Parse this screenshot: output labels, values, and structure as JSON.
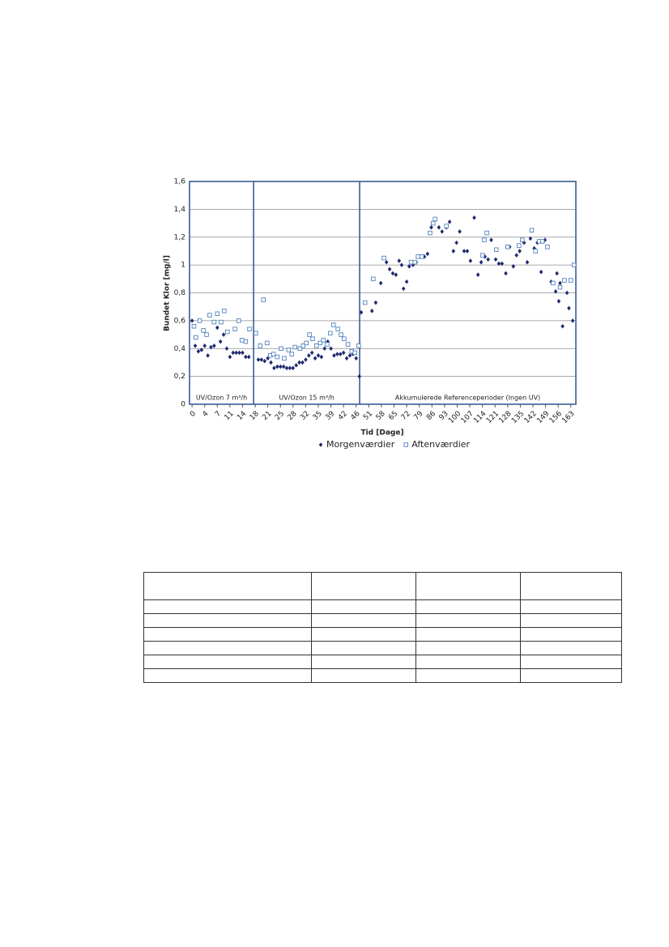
{
  "chart_data": {
    "type": "scatter",
    "ylabel": "Bundet Klor [mg/l]",
    "xlabel": "Tid [Dage]",
    "xlim": [
      -0.4,
      60.8
    ],
    "ylim": [
      0,
      1.6
    ],
    "yticks": [
      0,
      {
        "value": 0.2,
        "label": "0,2"
      },
      {
        "value": 0.4,
        "label": "0,4"
      },
      {
        "value": 0.6,
        "label": "0,6"
      },
      {
        "value": 0.8,
        "label": "0,8"
      },
      1,
      {
        "value": 1.2,
        "label": "1,2"
      },
      {
        "value": 1.4,
        "label": "1,4"
      },
      {
        "value": 1.6,
        "label": "1,6"
      }
    ],
    "xticks": [
      {
        "value": 0,
        "label": "0"
      },
      {
        "value": 2,
        "label": "4"
      },
      {
        "value": 4,
        "label": "7"
      },
      {
        "value": 6,
        "label": "11"
      },
      {
        "value": 8,
        "label": "14"
      },
      {
        "value": 10,
        "label": "18"
      },
      {
        "value": 12,
        "label": "21"
      },
      {
        "value": 14,
        "label": "25"
      },
      {
        "value": 16,
        "label": "28"
      },
      {
        "value": 18,
        "label": "32"
      },
      {
        "value": 20,
        "label": "35"
      },
      {
        "value": 22,
        "label": "39"
      },
      {
        "value": 24,
        "label": "42"
      },
      {
        "value": 26,
        "label": "46"
      },
      {
        "value": 28,
        "label": "51"
      },
      {
        "value": 30,
        "label": "58"
      },
      {
        "value": 32,
        "label": "65"
      },
      {
        "value": 34,
        "label": "72"
      },
      {
        "value": 36,
        "label": "79"
      },
      {
        "value": 38,
        "label": "86"
      },
      {
        "value": 40,
        "label": "93"
      },
      {
        "value": 42,
        "label": "100"
      },
      {
        "value": 44,
        "label": "107"
      },
      {
        "value": 46,
        "label": "114"
      },
      {
        "value": 48,
        "label": "121"
      },
      {
        "value": 50,
        "label": "128"
      },
      {
        "value": 52,
        "label": "135"
      },
      {
        "value": 54,
        "label": "142"
      },
      {
        "value": 56,
        "label": "149"
      },
      {
        "value": 58,
        "label": "156"
      },
      {
        "value": 60,
        "label": "163"
      }
    ],
    "grid": true,
    "sections": [
      {
        "label": "UV/Ozon 7 m³/h",
        "start": -0.4,
        "end": 9.75
      },
      {
        "label": "UV/Ozon 15 m³/h",
        "start": 9.75,
        "end": 26.55
      },
      {
        "label": "Akkumulerede Referenceperioder (Ingen UV)",
        "start": 26.55,
        "end": 60.8
      }
    ],
    "series": [
      {
        "name": "Morgenværdier",
        "color": "#1f2a6e",
        "marker": "diamond",
        "x": [
          0,
          0.5,
          1,
          1.5,
          2,
          2.5,
          3,
          3.5,
          4,
          4.5,
          5,
          5.5,
          6,
          6.5,
          7,
          7.5,
          8,
          8.5,
          9,
          10.5,
          11,
          11.5,
          12,
          12.5,
          13,
          13.5,
          14,
          14.5,
          15,
          15.5,
          16,
          16.5,
          17,
          17.5,
          18,
          18.5,
          19,
          19.5,
          20,
          20.5,
          21,
          21.5,
          22,
          22.5,
          23,
          23.5,
          24,
          24.5,
          25,
          25.5,
          26,
          26.5,
          26.8,
          28.5,
          29.1,
          29.9,
          30.8,
          31.3,
          31.8,
          32.3,
          32.8,
          33.2,
          33.5,
          34.0,
          34.4,
          35.0,
          35.5,
          36.2,
          36.8,
          37.3,
          37.9,
          38.5,
          39.1,
          39.6,
          40.3,
          40.8,
          41.4,
          41.9,
          42.4,
          43.1,
          43.6,
          44.1,
          44.7,
          45.3,
          45.8,
          46.4,
          46.9,
          47.4,
          48.1,
          48.6,
          49.1,
          49.7,
          50.3,
          50.9,
          51.4,
          51.9,
          52.6,
          53.1,
          53.6,
          54.2,
          54.7,
          55.3,
          55.9,
          56.9,
          57.6,
          57.8,
          58.1,
          58.3,
          58.7,
          59.4,
          59.7,
          60.3
        ],
        "values": [
          0.6,
          0.42,
          0.38,
          0.39,
          0.42,
          0.35,
          0.41,
          0.42,
          0.55,
          0.45,
          0.5,
          0.4,
          0.34,
          0.37,
          0.37,
          0.37,
          0.37,
          0.34,
          0.34,
          0.32,
          0.32,
          0.31,
          0.33,
          0.3,
          0.26,
          0.27,
          0.27,
          0.27,
          0.26,
          0.26,
          0.26,
          0.28,
          0.3,
          0.3,
          0.32,
          0.35,
          0.37,
          0.33,
          0.35,
          0.34,
          0.4,
          0.45,
          0.4,
          0.35,
          0.36,
          0.36,
          0.37,
          0.33,
          0.35,
          0.36,
          0.33,
          0.2,
          0.66,
          0.67,
          0.73,
          0.87,
          1.02,
          0.97,
          0.94,
          0.93,
          1.03,
          1.0,
          0.83,
          0.88,
          0.99,
          1.0,
          1.02,
          1.06,
          1.06,
          1.08,
          1.27,
          1.33,
          1.27,
          1.24,
          1.27,
          1.31,
          1.1,
          1.16,
          1.24,
          1.1,
          1.1,
          1.03,
          1.34,
          0.93,
          1.02,
          1.06,
          1.04,
          1.18,
          1.04,
          1.01,
          1.01,
          0.94,
          1.13,
          0.99,
          1.07,
          1.1,
          1.16,
          1.02,
          1.19,
          1.12,
          1.16,
          0.95,
          1.18,
          0.88,
          0.81,
          0.94,
          0.74,
          0.87,
          0.56,
          0.8,
          0.69,
          0.6
        ]
      },
      {
        "name": "Aftenværdier",
        "color": "#4f81bd",
        "marker": "square",
        "x": [
          0.3,
          0.6,
          1.2,
          1.8,
          2.3,
          2.8,
          3.5,
          4.0,
          4.6,
          5.1,
          5.6,
          6.8,
          7.4,
          7.9,
          8.5,
          9.1,
          10.1,
          10.8,
          11.3,
          11.9,
          12.4,
          12.9,
          13.5,
          14.1,
          14.6,
          15.3,
          15.8,
          16.3,
          17.1,
          17.6,
          18.1,
          18.6,
          19.1,
          19.7,
          20.3,
          20.8,
          21.4,
          21.9,
          22.4,
          23.1,
          23.6,
          24.1,
          24.7,
          25.3,
          25.8,
          26.4,
          27.4,
          28.7,
          30.4,
          34.7,
          35.3,
          35.8,
          36.4,
          37.7,
          38.2,
          38.5,
          40.3,
          46.0,
          46.3,
          46.7,
          48.2,
          50.0,
          51.8,
          52.3,
          53.8,
          54.4,
          55.0,
          55.5,
          56.3,
          57.2,
          58.3,
          59.0,
          60.0,
          60.5
        ],
        "values": [
          0.56,
          0.48,
          0.6,
          0.53,
          0.5,
          0.64,
          0.59,
          0.65,
          0.59,
          0.67,
          0.52,
          0.54,
          0.6,
          0.46,
          0.45,
          0.54,
          0.51,
          0.42,
          0.75,
          0.44,
          0.35,
          0.36,
          0.34,
          0.4,
          0.33,
          0.39,
          0.36,
          0.41,
          0.4,
          0.42,
          0.44,
          0.5,
          0.47,
          0.42,
          0.44,
          0.46,
          0.43,
          0.51,
          0.57,
          0.54,
          0.5,
          0.47,
          0.43,
          0.38,
          0.37,
          0.42,
          0.73,
          0.9,
          1.05,
          1.02,
          1.02,
          1.06,
          1.06,
          1.23,
          1.3,
          1.33,
          1.28,
          1.07,
          1.18,
          1.23,
          1.11,
          1.13,
          1.14,
          1.18,
          1.25,
          1.1,
          1.17,
          1.17,
          1.13,
          0.87,
          0.84,
          0.89,
          0.89,
          1.0
        ]
      }
    ]
  }
}
